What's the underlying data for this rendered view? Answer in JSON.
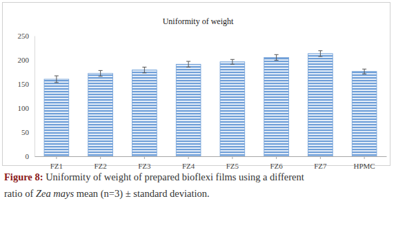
{
  "chart_data": {
    "type": "bar",
    "title": "Uniformity of weight",
    "categories": [
      "FZ1",
      "FZ2",
      "FZ3",
      "FZ4",
      "FZ5",
      "FZ6",
      "FZ7",
      "HPMC"
    ],
    "values": [
      160,
      172,
      179,
      191,
      196,
      205,
      213,
      176
    ],
    "errors": [
      7,
      6,
      6,
      6,
      5,
      6,
      6,
      5
    ],
    "color": "#6f9fd8",
    "ylim": [
      0,
      250
    ],
    "yticks": [
      0,
      50,
      100,
      150,
      200,
      250
    ],
    "grid": false,
    "caption": [
      "Figure 8: ",
      "Uniformity of weight of prepared bioflexi films using a different",
      "ratio of ",
      "Zea mays",
      " mean (n=3) ± standard deviation."
    ]
  }
}
